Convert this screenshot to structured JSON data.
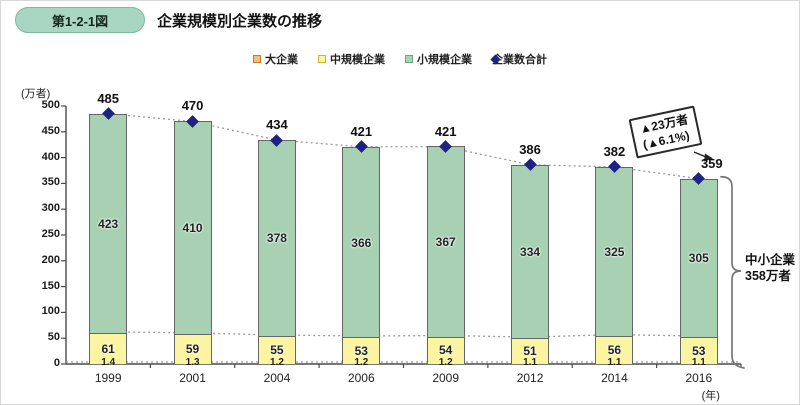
{
  "figure": {
    "badge": "第1-2-1図",
    "title": "企業規模別企業数の推移"
  },
  "legend": [
    {
      "label": "大企業",
      "swatch": "square",
      "border": "#c87c2a",
      "fill": "#f0c07f"
    },
    {
      "label": "中規模企業",
      "swatch": "square",
      "border": "#c6b82e",
      "fill": "#fdf6a3"
    },
    {
      "label": "小規模企業",
      "swatch": "square",
      "border": "#69a87e",
      "fill": "#abd4b6"
    },
    {
      "label": "企業数合計",
      "swatch": "diamond",
      "border": "#1e2283",
      "fill": "#1e2283"
    }
  ],
  "chart_data": {
    "type": "stacked-bar-with-line",
    "title": "企業規模別企業数の推移",
    "unit_label": "(万者)",
    "x_axis_label": "(年)",
    "categories": [
      "1999",
      "2001",
      "2004",
      "2006",
      "2009",
      "2012",
      "2014",
      "2016"
    ],
    "series": [
      {
        "name": "大企業",
        "role": "bar-bottom",
        "color": "#e39b3d",
        "values": [
          1.4,
          1.3,
          1.2,
          1.2,
          1.2,
          1.1,
          1.1,
          1.1
        ]
      },
      {
        "name": "中規模企業",
        "role": "bar-middle",
        "color": "#fbf4a0",
        "values": [
          61,
          59,
          55,
          53,
          54,
          51,
          56,
          53
        ]
      },
      {
        "name": "小規模企業",
        "role": "bar-top",
        "color": "#a8d1b3",
        "values": [
          423,
          410,
          378,
          366,
          367,
          334,
          325,
          305
        ]
      },
      {
        "name": "企業数合計",
        "role": "line",
        "color": "#1e2283",
        "values": [
          485,
          470,
          434,
          421,
          421,
          386,
          382,
          359
        ]
      }
    ],
    "ylim": [
      0,
      500
    ],
    "yticks": [
      0,
      50,
      100,
      150,
      200,
      250,
      300,
      350,
      400,
      450,
      500
    ],
    "grid": "dotted-connectors",
    "legend_position": "top",
    "annotation": {
      "line1": "▲23万者",
      "line2": "(▲6.1%)"
    },
    "bracket_label": {
      "line1": "中小企業",
      "line2": "358万者"
    }
  }
}
